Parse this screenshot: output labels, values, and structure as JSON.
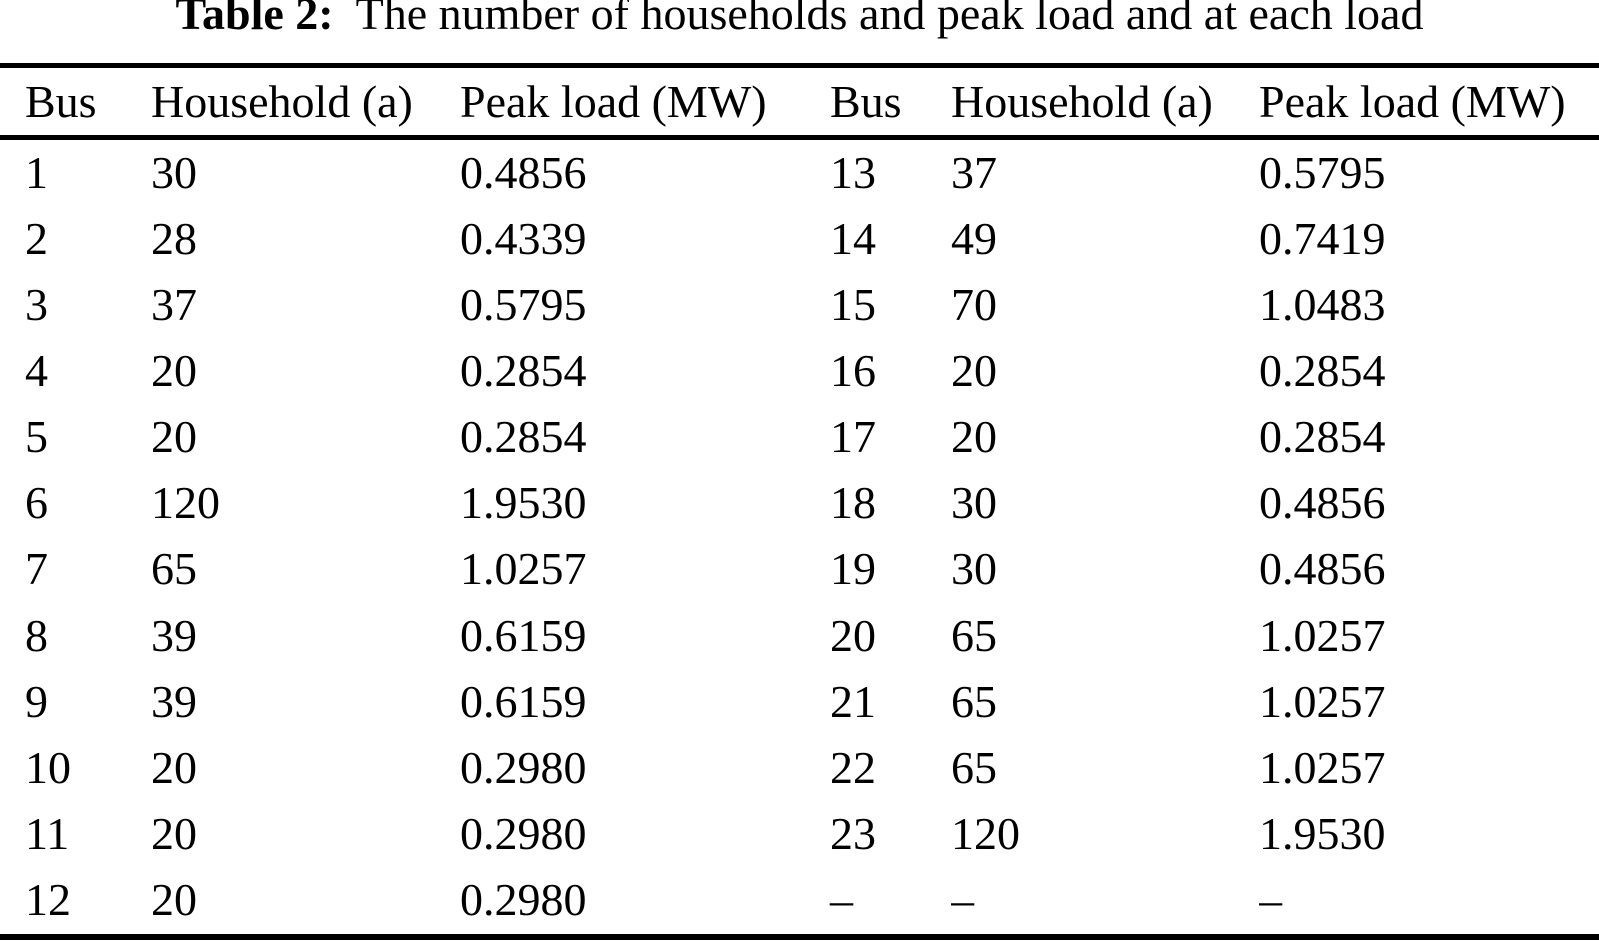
{
  "title": {
    "label": "Table 2:",
    "text": "The number of households and peak load and at each load"
  },
  "colors": {
    "background": "#ffffff",
    "text": "#000000",
    "rule": "#000000"
  },
  "table": {
    "headers": [
      "Bus",
      "Household (a)",
      "Peak load (MW)",
      "Bus",
      "Household (a)",
      "Peak load (MW)"
    ],
    "rows": [
      [
        "1",
        "30",
        "0.4856",
        "13",
        "37",
        "0.5795"
      ],
      [
        "2",
        "28",
        "0.4339",
        "14",
        "49",
        "0.7419"
      ],
      [
        "3",
        "37",
        "0.5795",
        "15",
        "70",
        "1.0483"
      ],
      [
        "4",
        "20",
        "0.2854",
        "16",
        "20",
        "0.2854"
      ],
      [
        "5",
        "20",
        "0.2854",
        "17",
        "20",
        "0.2854"
      ],
      [
        "6",
        "120",
        "1.9530",
        "18",
        "30",
        "0.4856"
      ],
      [
        "7",
        "65",
        "1.0257",
        "19",
        "30",
        "0.4856"
      ],
      [
        "8",
        "39",
        "0.6159",
        "20",
        "65",
        "1.0257"
      ],
      [
        "9",
        "39",
        "0.6159",
        "21",
        "65",
        "1.0257"
      ],
      [
        "10",
        "20",
        "0.2980",
        "22",
        "65",
        "1.0257"
      ],
      [
        "11",
        "20",
        "0.2980",
        "23",
        "120",
        "1.9530"
      ],
      [
        "12",
        "20",
        "0.2980",
        "–",
        "–",
        "–"
      ]
    ]
  }
}
